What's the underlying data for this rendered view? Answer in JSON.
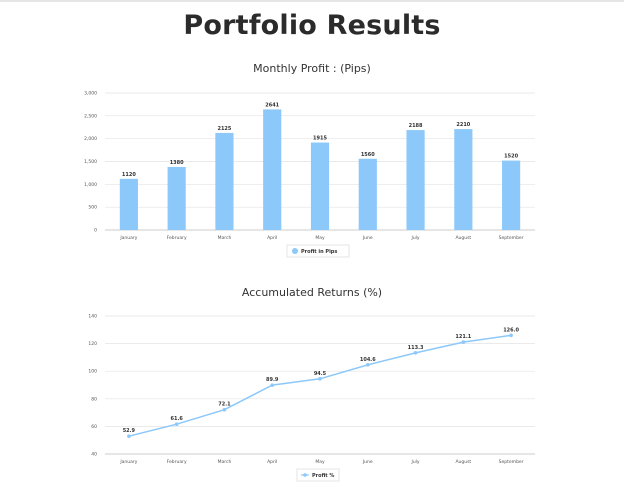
{
  "page": {
    "title": "Portfolio Results"
  },
  "colors": {
    "bar": "#8cc8fa",
    "line": "#8cc8fa",
    "grid": "#e3e3e3",
    "axis": "#bdbdbd"
  },
  "chart_data": [
    {
      "type": "bar",
      "title": "Monthly Profit : (Pips)",
      "categories": [
        "January",
        "February",
        "March",
        "April",
        "May",
        "June",
        "July",
        "August",
        "September"
      ],
      "series": [
        {
          "name": "Profit in Pips",
          "values": [
            1120,
            1380,
            2125,
            2641,
            1915,
            1560,
            2188,
            2210,
            1520
          ]
        }
      ],
      "data_labels": [
        "1120",
        "1380",
        "2125",
        "2641",
        "1915",
        "1560",
        "2188",
        "2210",
        "1520"
      ],
      "y_ticks": [
        "0",
        "500",
        "1,000",
        "1,500",
        "2,000",
        "2,500",
        "3,000"
      ],
      "ylim": [
        0,
        3000
      ],
      "grid": true,
      "legend": "bottom-center"
    },
    {
      "type": "line",
      "title": "Accumulated Returns (%)",
      "categories": [
        "January",
        "February",
        "March",
        "April",
        "May",
        "June",
        "July",
        "August",
        "September"
      ],
      "series": [
        {
          "name": "Profit %",
          "values": [
            52.9,
            61.6,
            72.1,
            89.9,
            94.5,
            104.6,
            113.3,
            121.1,
            126.0
          ]
        }
      ],
      "data_labels": [
        "52.9",
        "61.6",
        "72.1",
        "89.9",
        "94.5",
        "104.6",
        "113.3",
        "121.1",
        "126.0"
      ],
      "y_ticks": [
        "40",
        "60",
        "80",
        "100",
        "120",
        "140"
      ],
      "ylim": [
        40,
        140
      ],
      "grid": true,
      "legend": "bottom-center"
    }
  ]
}
